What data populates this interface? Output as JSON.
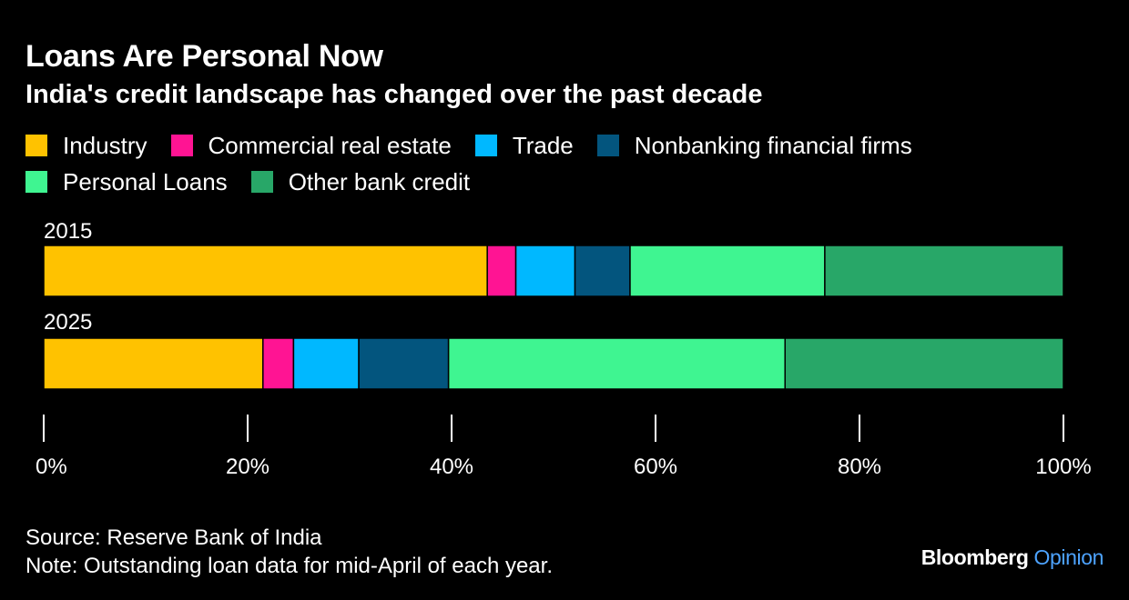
{
  "chart_data": {
    "type": "bar",
    "orientation": "horizontal",
    "stacked": true,
    "title": "Loans Are Personal Now",
    "subtitle": "India's credit landscape has changed over the past decade",
    "categories": [
      "2015",
      "2025"
    ],
    "series": [
      {
        "name": "Industry",
        "color": "#ffc200",
        "values": [
          43.5,
          21.5
        ]
      },
      {
        "name": "Commercial real estate",
        "color": "#ff1493",
        "values": [
          2.8,
          3.0
        ]
      },
      {
        "name": "Trade",
        "color": "#00b8ff",
        "values": [
          5.8,
          6.4
        ]
      },
      {
        "name": "Nonbanking financial firms",
        "color": "#03557e",
        "values": [
          5.4,
          8.8
        ]
      },
      {
        "name": "Personal Loans",
        "color": "#3ff591",
        "values": [
          19.1,
          33.0
        ]
      },
      {
        "name": "Other bank credit",
        "color": "#28a768",
        "values": [
          23.4,
          27.3
        ]
      }
    ],
    "xlim": [
      0,
      100
    ],
    "x_ticks": [
      0,
      20,
      40,
      60,
      80,
      100
    ],
    "x_tick_labels": [
      "0%",
      "20%",
      "40%",
      "60%",
      "80%",
      "100%"
    ],
    "legend_position": "top",
    "grid": false
  },
  "footer": {
    "source": "Source: Reserve Bank of India",
    "note": "Note: Outstanding loan data for mid-April of each year."
  },
  "brand": {
    "name": "Bloomberg",
    "sub": "Opinion",
    "sub_color": "#4da3ff"
  }
}
